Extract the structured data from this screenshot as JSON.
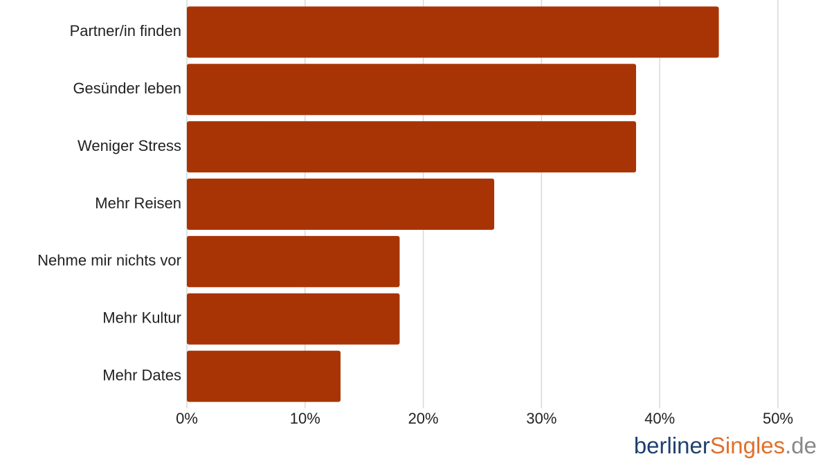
{
  "chart_data": {
    "type": "bar",
    "orientation": "horizontal",
    "categories": [
      "Partner/in finden",
      "Gesünder leben",
      "Weniger Stress",
      "Mehr Reisen",
      "Nehme mir nichts vor",
      "Mehr Kultur",
      "Mehr Dates"
    ],
    "values": [
      45,
      38,
      38,
      26,
      18,
      18,
      13
    ],
    "color": "#a83405",
    "xlim": [
      0,
      50
    ],
    "xticks": [
      {
        "value": 0,
        "label": "0%"
      },
      {
        "value": 10,
        "label": "10%"
      },
      {
        "value": 20,
        "label": "20%"
      },
      {
        "value": 30,
        "label": "30%"
      },
      {
        "value": 40,
        "label": "40%"
      },
      {
        "value": 50,
        "label": "50%"
      }
    ],
    "grid": true
  },
  "logo": {
    "part1": "berliner",
    "part2": "Singles",
    "part3": ".de"
  }
}
